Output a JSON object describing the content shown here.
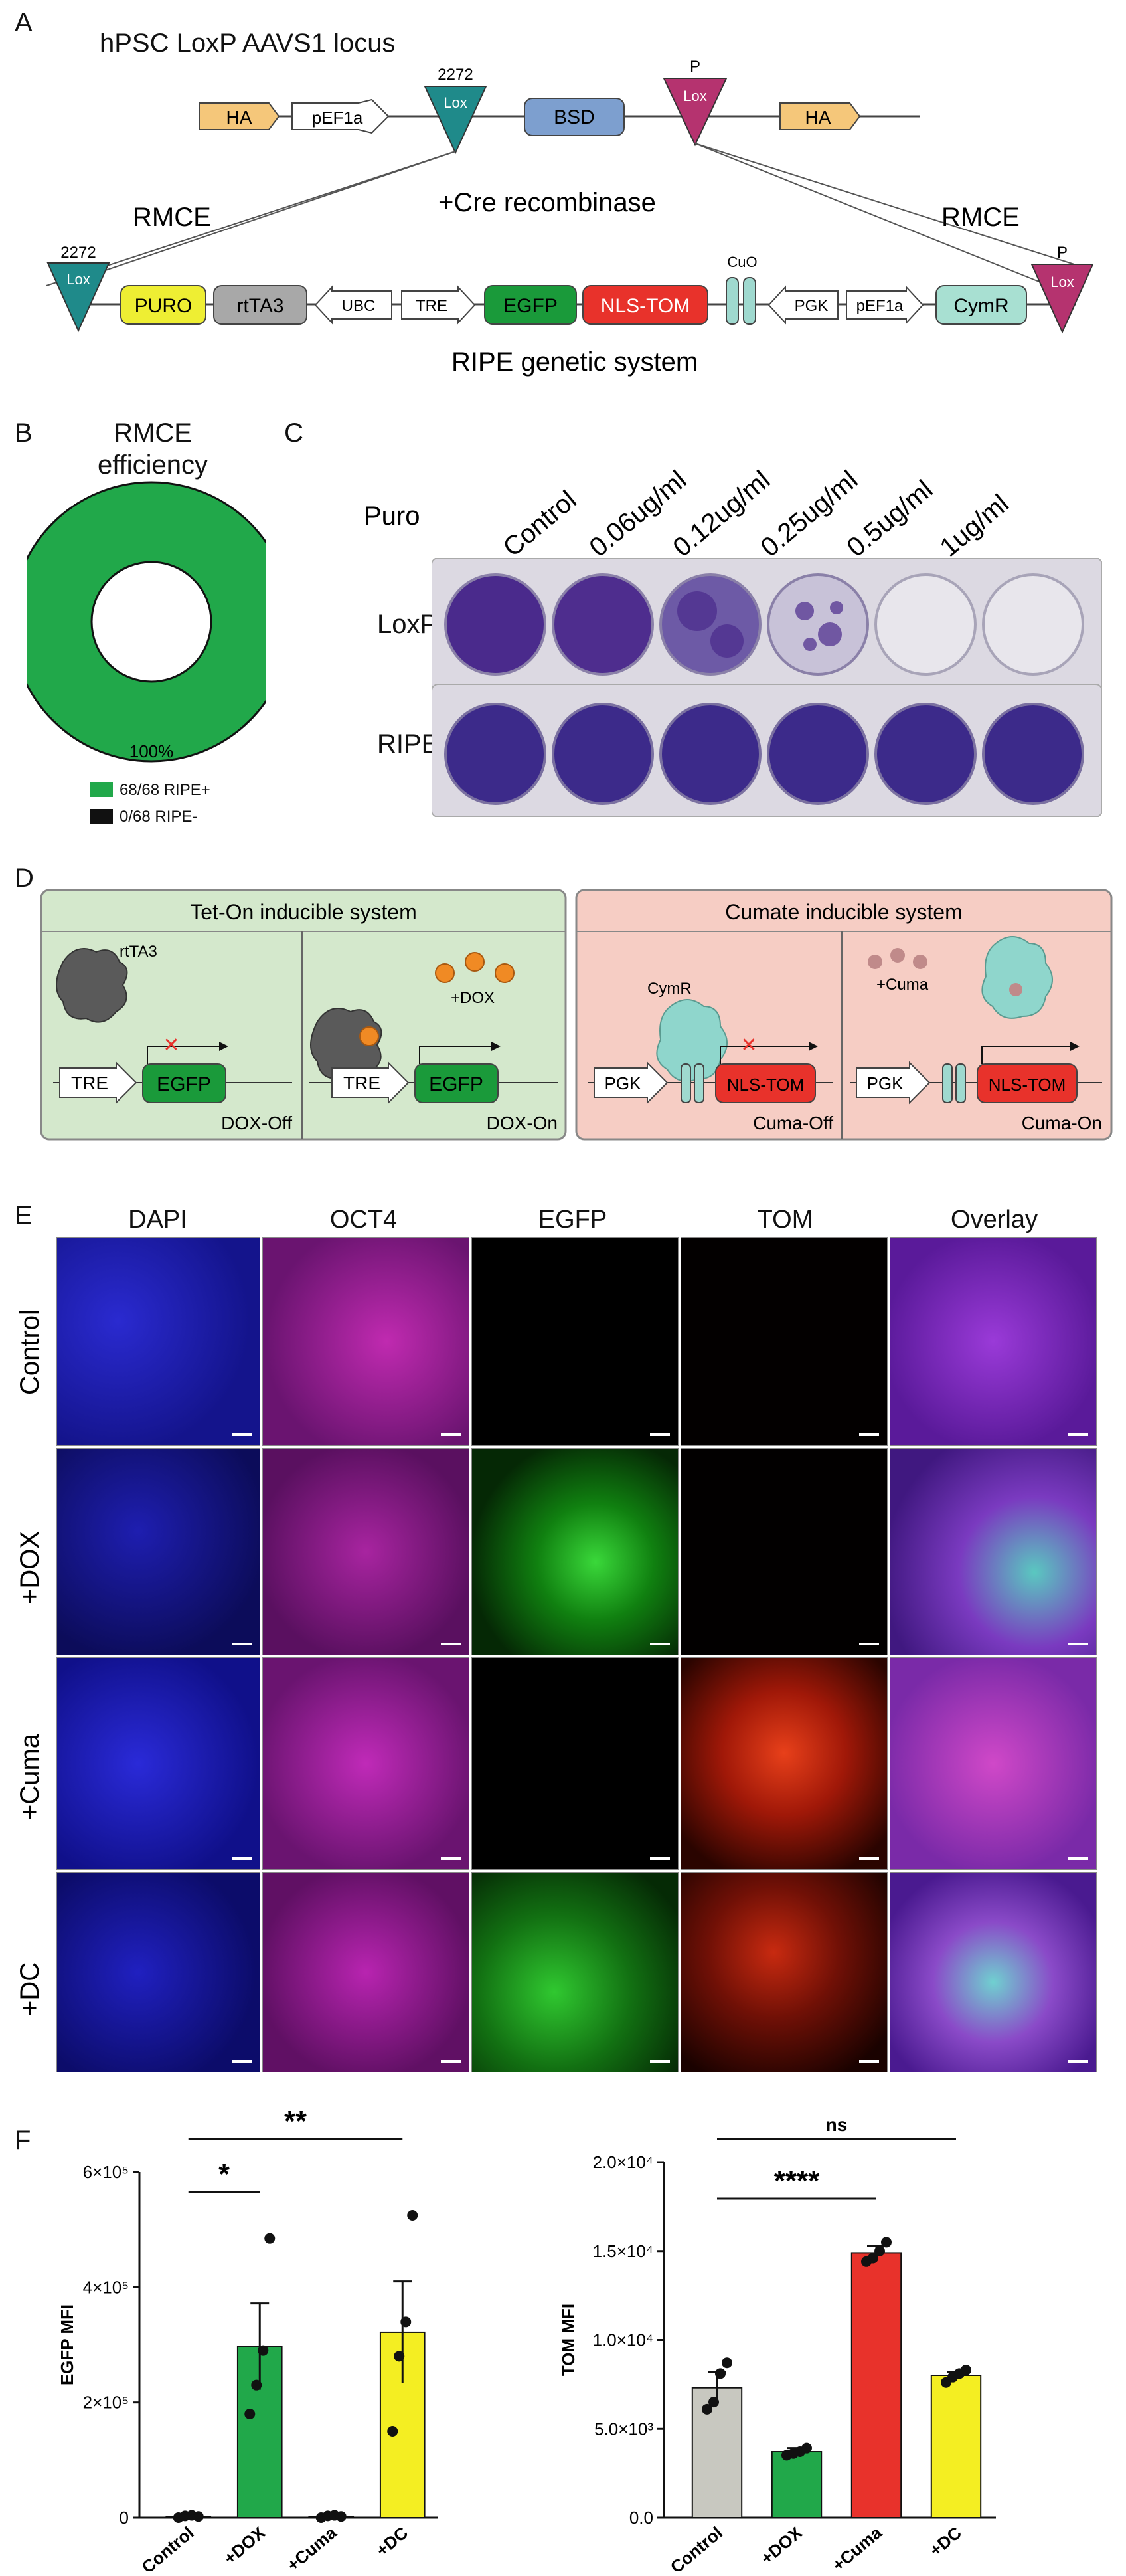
{
  "panel_letters": {
    "a": "A",
    "b": "B",
    "c": "C",
    "d": "D",
    "e": "E",
    "f": "F"
  },
  "panel_a": {
    "top_title": "hPSC LoxP AAVS1 locus",
    "lox2272_top": "2272",
    "lox_label": "Lox",
    "loxp_top": "P",
    "ha": "HA",
    "pef1a": "pEF1a",
    "bsd": "BSD",
    "rmce_left": "RMCE",
    "rmce_right": "RMCE",
    "cre": "+Cre recombinase",
    "lox2272_bottom": "2272",
    "loxp_bottom": "P",
    "puro": "PURO",
    "rtta3": "rtTA3",
    "ubc": "UBC",
    "tre": "TRE",
    "egfp": "EGFP",
    "nlstom": "NLS-TOM",
    "cuo": "CuO",
    "pgk": "PGK",
    "pef1a_2": "pEF1a",
    "cymr": "CymR",
    "bottom_title": "RIPE genetic system",
    "colors": {
      "teal": "#1f8a8a",
      "magenta": "#b5336f",
      "ha": "#f5c77a",
      "bsd": "#7d9fcf",
      "puro": "#eeee33",
      "rtta3": "#a8a8a8",
      "egfp": "#1a9a3a",
      "nlstom": "#e8322b",
      "cuo": "#9fd9cf",
      "cymr": "#a8e0d2"
    }
  },
  "panel_b": {
    "title_1": "RMCE",
    "title_2": "efficiency",
    "center_value": "100%",
    "legend": [
      {
        "label": "68/68 RIPE+",
        "color": "#21a84a"
      },
      {
        "label": "0/68 RIPE-",
        "color": "#111111"
      }
    ],
    "chart_data": {
      "type": "pie",
      "values": [
        68,
        0
      ],
      "categories": [
        "68/68 RIPE+",
        "0/68 RIPE-"
      ]
    }
  },
  "panel_c": {
    "puro": "Puro",
    "conditions": [
      "Control",
      "0.06ug/ml",
      "0.12ug/ml",
      "0.25ug/ml",
      "0.5ug/ml",
      "1ug/ml"
    ],
    "rows": [
      "LoxP",
      "RIPE"
    ]
  },
  "panel_d": {
    "tet_title": "Tet-On inducible system",
    "cumate_title": "Cumate inducible system",
    "rtta3": "rtTA3",
    "dox": "+DOX",
    "tre": "TRE",
    "egfp": "EGFP",
    "dox_off": "DOX-Off",
    "dox_on": "DOX-On",
    "cymr": "CymR",
    "cuma": "+Cuma",
    "pgk": "PGK",
    "nlstom": "NLS-TOM",
    "cuma_off": "Cuma-Off",
    "cuma_on": "Cuma-On",
    "colors": {
      "tet_bg": "#d4e8cc",
      "cuma_bg": "#f6cdc4"
    }
  },
  "panel_e": {
    "columns": [
      "DAPI",
      "OCT4",
      "EGFP",
      "TOM",
      "Overlay"
    ],
    "rows": [
      "Control",
      "+DOX",
      "+Cuma",
      "+DC"
    ]
  },
  "panel_f": {
    "left": {
      "ylabel": "EGFP MFI",
      "ticks": [
        "0",
        "2×10⁵",
        "4×10⁵",
        "6×10⁵"
      ],
      "sig": [
        "*",
        "**"
      ]
    },
    "right": {
      "ylabel": "TOM MFI",
      "ticks": [
        "0.0",
        "5.0×10³",
        "1.0×10⁴",
        "1.5×10⁴",
        "2.0×10⁴"
      ],
      "sig": [
        "ns",
        "****"
      ]
    },
    "chart_data": [
      {
        "type": "bar",
        "ylabel": "EGFP MFI",
        "ylim": [
          0,
          600000
        ],
        "categories": [
          "Control",
          "+DOX",
          "+Cuma",
          "+DC"
        ],
        "values": [
          2000,
          297000,
          2000,
          322000
        ],
        "errors": [
          2000,
          75000,
          2000,
          88000
        ],
        "points": [
          [
            0,
            3000,
            4000,
            2000
          ],
          [
            180000,
            230000,
            290000,
            485000
          ],
          [
            0,
            3000,
            4000,
            2000
          ],
          [
            150000,
            280000,
            340000,
            525000
          ]
        ],
        "colors": [
          "#c8c8c0",
          "#21a84a",
          "#c8c8c0",
          "#f4ee22"
        ]
      },
      {
        "type": "bar",
        "ylabel": "TOM MFI",
        "ylim": [
          0,
          20000
        ],
        "categories": [
          "Control",
          "+DOX",
          "+Cuma",
          "+DC"
        ],
        "values": [
          7300,
          3700,
          14900,
          8000
        ],
        "errors": [
          900,
          200,
          400,
          200
        ],
        "points": [
          [
            6100,
            6500,
            8100,
            8700
          ],
          [
            3500,
            3600,
            3700,
            3900
          ],
          [
            14400,
            14600,
            15000,
            15500
          ],
          [
            7600,
            7900,
            8100,
            8300
          ]
        ],
        "colors": [
          "#c8c8c0",
          "#21a84a",
          "#e8322b",
          "#f4ee22"
        ]
      }
    ]
  }
}
